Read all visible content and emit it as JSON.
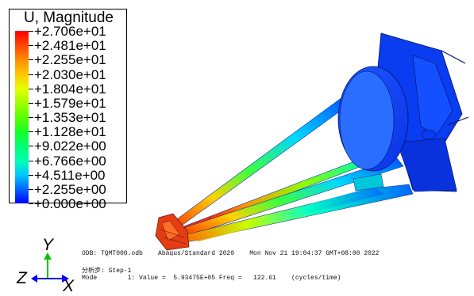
{
  "legend": {
    "title": "U, Magnitude",
    "values": [
      "+2.706e+01",
      "+2.481e+01",
      "+2.255e+01",
      "+2.030e+01",
      "+1.804e+01",
      "+1.579e+01",
      "+1.353e+01",
      "+1.128e+01",
      "+9.022e+00",
      "+6.766e+00",
      "+4.511e+00",
      "+2.255e+00",
      "+0.000e+00"
    ],
    "colors": [
      "#ff0000",
      "#ff4600",
      "#ff8c00",
      "#ffc800",
      "#e6ff00",
      "#a0ff00",
      "#5aff00",
      "#14ff28",
      "#00ff6e",
      "#00ffb4",
      "#00c8ff",
      "#0064ff",
      "#0000ff"
    ]
  },
  "triad": {
    "x": "X",
    "y": "Y",
    "z": "Z"
  },
  "info": {
    "odb_line": "ODB: TQMT000.odb    Abaqus/Standard 2020    Mon Nov 21 19:04:37 GMT+08:00 2022",
    "step_line": "分析步: Step-1",
    "mode_line": "Mode        1: Value =  5.93475E+05 Freq =   122.61    (cycles/time)"
  }
}
